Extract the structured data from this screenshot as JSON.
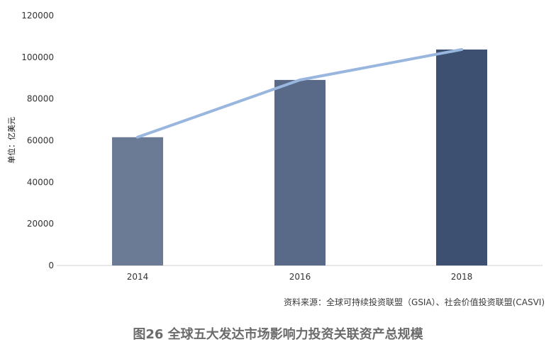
{
  "chart_data": {
    "type": "bar",
    "categories": [
      "2014",
      "2016",
      "2018"
    ],
    "values": [
      61600,
      89100,
      103700
    ],
    "trend_line": [
      61600,
      89100,
      103700
    ],
    "ylabel": "单位：亿美元",
    "xlabel": "",
    "ylim": [
      0,
      120000
    ],
    "yticks": [
      0,
      20000,
      40000,
      60000,
      80000,
      100000,
      120000
    ],
    "grid": false,
    "legend": "none",
    "bar_colors": [
      "#6b7b96",
      "#596a88",
      "#3d5072"
    ],
    "line_color": "#98b6de"
  },
  "source": "资料来源：全球可持续投资联盟（GSIA）、社会价值投资联盟(CASVI)",
  "caption": "图26  全球五大发达市场影响力投资关联资产总规模"
}
